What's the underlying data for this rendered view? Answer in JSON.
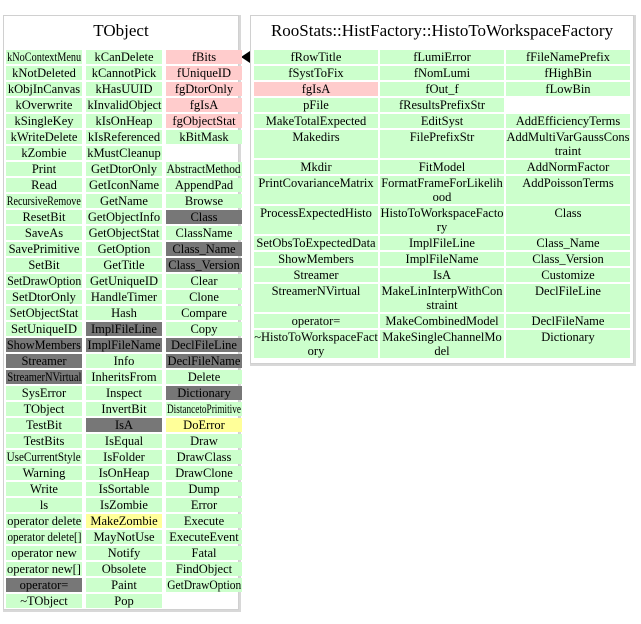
{
  "colors": {
    "g": "#ccffcc",
    "p": "#ffcccc",
    "d": "#777777",
    "y": "#ffff99"
  },
  "tobject": {
    "title": "TObject",
    "columns": [
      [
        [
          "kNoContextMenu",
          "g"
        ],
        [
          "kNotDeleted",
          "g"
        ],
        [
          "kObjInCanvas",
          "g"
        ],
        [
          "kOverwrite",
          "g"
        ],
        [
          "kSingleKey",
          "g"
        ],
        [
          "kWriteDelete",
          "g"
        ],
        [
          "kZombie",
          "g"
        ],
        [
          "Print",
          "g"
        ],
        [
          "Read",
          "g"
        ],
        [
          "RecursiveRemove",
          "g"
        ],
        [
          "ResetBit",
          "g"
        ],
        [
          "SaveAs",
          "g"
        ],
        [
          "SavePrimitive",
          "g"
        ],
        [
          "SetBit",
          "g"
        ],
        [
          "SetDrawOption",
          "g"
        ],
        [
          "SetDtorOnly",
          "g"
        ],
        [
          "SetObjectStat",
          "g"
        ],
        [
          "SetUniqueID",
          "g"
        ],
        [
          "ShowMembers",
          "d"
        ],
        [
          "Streamer",
          "d"
        ],
        [
          "StreamerNVirtual",
          "d"
        ],
        [
          "SysError",
          "g"
        ],
        [
          "TObject",
          "g"
        ],
        [
          "TestBit",
          "g"
        ],
        [
          "TestBits",
          "g"
        ],
        [
          "UseCurrentStyle",
          "g"
        ],
        [
          "Warning",
          "g"
        ],
        [
          "Write",
          "g"
        ],
        [
          "ls",
          "g"
        ],
        [
          "operator delete",
          "g"
        ],
        [
          "operator delete[]",
          "g"
        ],
        [
          "operator new",
          "g"
        ],
        [
          "operator new[]",
          "g"
        ],
        [
          "operator=",
          "d"
        ],
        [
          "~TObject",
          "g"
        ]
      ],
      [
        [
          "kCanDelete",
          "g"
        ],
        [
          "kCannotPick",
          "g"
        ],
        [
          "kHasUUID",
          "g"
        ],
        [
          "kInvalidObject",
          "g"
        ],
        [
          "kIsOnHeap",
          "g"
        ],
        [
          "kIsReferenced",
          "g"
        ],
        [
          "kMustCleanup",
          "g"
        ],
        [
          "GetDtorOnly",
          "g"
        ],
        [
          "GetIconName",
          "g"
        ],
        [
          "GetName",
          "g"
        ],
        [
          "GetObjectInfo",
          "g"
        ],
        [
          "GetObjectStat",
          "g"
        ],
        [
          "GetOption",
          "g"
        ],
        [
          "GetTitle",
          "g"
        ],
        [
          "GetUniqueID",
          "g"
        ],
        [
          "HandleTimer",
          "g"
        ],
        [
          "Hash",
          "g"
        ],
        [
          "ImplFileLine",
          "d"
        ],
        [
          "ImplFileName",
          "d"
        ],
        [
          "Info",
          "g"
        ],
        [
          "InheritsFrom",
          "g"
        ],
        [
          "Inspect",
          "g"
        ],
        [
          "InvertBit",
          "g"
        ],
        [
          "IsA",
          "d"
        ],
        [
          "IsEqual",
          "g"
        ],
        [
          "IsFolder",
          "g"
        ],
        [
          "IsOnHeap",
          "g"
        ],
        [
          "IsSortable",
          "g"
        ],
        [
          "IsZombie",
          "g"
        ],
        [
          "MakeZombie",
          "y"
        ],
        [
          "MayNotUse",
          "g"
        ],
        [
          "Notify",
          "g"
        ],
        [
          "Obsolete",
          "g"
        ],
        [
          "Paint",
          "g"
        ],
        [
          "Pop",
          "g"
        ]
      ],
      [
        [
          "fBits",
          "p"
        ],
        [
          "fUniqueID",
          "p"
        ],
        [
          "fgDtorOnly",
          "p"
        ],
        [
          "fgIsA",
          "p"
        ],
        [
          "fgObjectStat",
          "p"
        ],
        [
          "kBitMask",
          "g"
        ],
        [
          "",
          "e"
        ],
        [
          "AbstractMethod",
          "g"
        ],
        [
          "AppendPad",
          "g"
        ],
        [
          "Browse",
          "g"
        ],
        [
          "Class",
          "d"
        ],
        [
          "ClassName",
          "g"
        ],
        [
          "Class_Name",
          "d"
        ],
        [
          "Class_Version",
          "d"
        ],
        [
          "Clear",
          "g"
        ],
        [
          "Clone",
          "g"
        ],
        [
          "Compare",
          "g"
        ],
        [
          "Copy",
          "g"
        ],
        [
          "DeclFileLine",
          "d"
        ],
        [
          "DeclFileName",
          "d"
        ],
        [
          "Delete",
          "g"
        ],
        [
          "Dictionary",
          "d"
        ],
        [
          "DistancetoPrimitive",
          "g"
        ],
        [
          "DoError",
          "y"
        ],
        [
          "Draw",
          "g"
        ],
        [
          "DrawClass",
          "g"
        ],
        [
          "DrawClone",
          "g"
        ],
        [
          "Dump",
          "g"
        ],
        [
          "Error",
          "g"
        ],
        [
          "Execute",
          "g"
        ],
        [
          "ExecuteEvent",
          "g"
        ],
        [
          "Fatal",
          "g"
        ],
        [
          "FindObject",
          "g"
        ],
        [
          "GetDrawOption",
          "g"
        ]
      ]
    ]
  },
  "factory": {
    "title": "RooStats::HistFactory::HistoToWorkspaceFactory",
    "columns": [
      [
        [
          "fRowTitle",
          "g"
        ],
        [
          "fSystToFix",
          "g"
        ],
        [
          "fgIsA",
          "p"
        ],
        [
          "pFile",
          "g"
        ],
        [
          "MakeTotalExpected",
          "g"
        ],
        [
          "Makedirs",
          "g"
        ],
        [
          "Mkdir",
          "g"
        ],
        [
          "PrintCovarianceMatrix",
          "g"
        ],
        [
          "ProcessExpectedHisto",
          "g"
        ],
        [
          "SetObsToExpectedData",
          "g"
        ],
        [
          "ShowMembers",
          "g"
        ],
        [
          "Streamer",
          "g"
        ],
        [
          "StreamerNVirtual",
          "g"
        ],
        [
          "operator=",
          "g"
        ],
        [
          "~HistoToWorkspaceFactory",
          "g"
        ]
      ],
      [
        [
          "fLumiError",
          "g"
        ],
        [
          "fNomLumi",
          "g"
        ],
        [
          "fOut_f",
          "g"
        ],
        [
          "fResultsPrefixStr",
          "g"
        ],
        [
          "EditSyst",
          "g"
        ],
        [
          "FilePrefixStr",
          "g"
        ],
        [
          "FitModel",
          "g"
        ],
        [
          "FormatFrameForLikelihood",
          "g"
        ],
        [
          "HistoToWorkspaceFactory",
          "g"
        ],
        [
          "ImplFileLine",
          "g"
        ],
        [
          "ImplFileName",
          "g"
        ],
        [
          "IsA",
          "g"
        ],
        [
          "MakeLinInterpWithConstraint",
          "g"
        ],
        [
          "MakeCombinedModel",
          "g"
        ],
        [
          "MakeSingleChannelModel",
          "g"
        ]
      ],
      [
        [
          "fFileNamePrefix",
          "g"
        ],
        [
          "fHighBin",
          "g"
        ],
        [
          "fLowBin",
          "g"
        ],
        [
          "",
          "e"
        ],
        [
          "AddEfficiencyTerms",
          "g"
        ],
        [
          "AddMultiVarGaussConstraint",
          "g"
        ],
        [
          "AddNormFactor",
          "g"
        ],
        [
          "AddPoissonTerms",
          "g"
        ],
        [
          "Class",
          "g"
        ],
        [
          "Class_Name",
          "g"
        ],
        [
          "Class_Version",
          "g"
        ],
        [
          "Customize",
          "g"
        ],
        [
          "DeclFileLine",
          "g"
        ],
        [
          "DeclFileName",
          "g"
        ],
        [
          "Dictionary",
          "g"
        ]
      ]
    ]
  }
}
